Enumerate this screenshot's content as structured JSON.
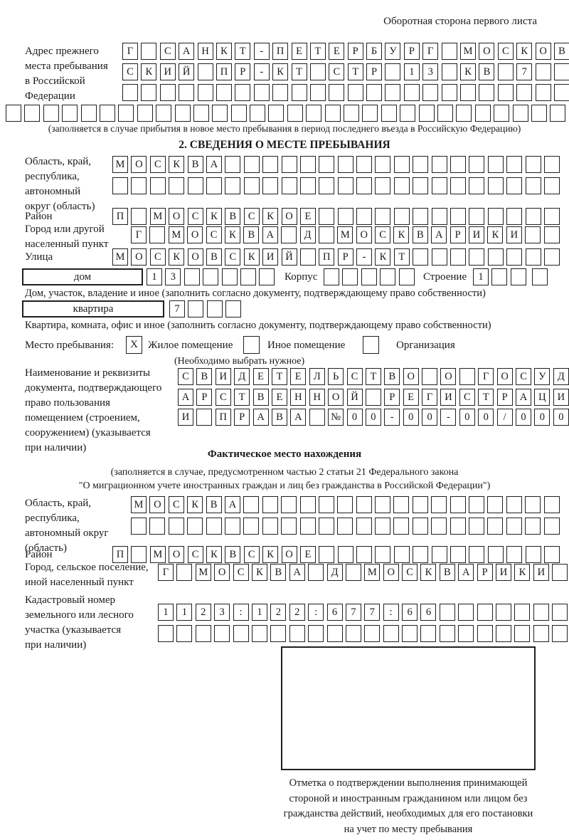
{
  "page": {
    "header_note": "Оборотная сторона первого листа"
  },
  "prev_address": {
    "label_lines": [
      "Адрес прежнего",
      "места пребывания",
      "в Российской",
      "Федерации"
    ],
    "row1": "Г САНКТ-ПЕТЕРБУРГ МОСКОВ",
    "row2": "СКИЙ ПР-КТ СТР 13 КВ 7  ",
    "row3": "                        ",
    "row4": "                              ",
    "caption": "(заполняется в случае прибытия в новое место пребывания в период последнего въезда в Российскую Федерацию)"
  },
  "section2": {
    "title": "2. СВЕДЕНИЯ О МЕСТЕ ПРЕБЫВАНИЯ",
    "region": {
      "label_lines": [
        "Область, край,",
        "республика,",
        "автономный",
        "округ (область)"
      ],
      "row1": "МОСКВА                  ",
      "row2": "                        "
    },
    "district": {
      "label": "Район",
      "row": "П МОСКВСКОЕ             "
    },
    "city": {
      "label_lines": [
        "Город или другой",
        "населенный пункт"
      ],
      "row": "Г МОСКВА Д МОСКВАРИКИ  "
    },
    "street": {
      "label": "Улица",
      "row": "МОСКОВСКИЙ ПР-КТ        "
    },
    "house": {
      "label": "дом",
      "cells": "13     ",
      "korpus_label": "Корпус",
      "korpus_cells": "     ",
      "stroenie_label": "Строение",
      "stroenie_cells": "1  ",
      "stroenie_extra": " ",
      "caption": "Дом, участок, владение и иное (заполнить согласно документу, подтверждающему право собственности)"
    },
    "apartment": {
      "label": "квартира",
      "cells": "7   ",
      "caption": "Квартира, комната, офис и иное (заполнить согласно документу, подтверждающему право собственности)"
    },
    "stay_type": {
      "label": "Место пребывания:",
      "option1": {
        "label": "Жилое помещение",
        "mark": "X"
      },
      "option2": {
        "label": "Иное помещение",
        "mark": ""
      },
      "option3": {
        "label": "Организация",
        "mark": ""
      },
      "hint": "(Необходимо выбрать нужное)"
    },
    "document": {
      "label_lines": [
        "Наименование и реквизиты",
        "документа, подтверждающего",
        "право пользования",
        "помещением (строением,",
        "сооружением) (указывается",
        "при наличии)"
      ],
      "row1": "СВИДЕТЕЛЬСТВО О ГОСУД",
      "row2": "АРСТВЕННОЙ РЕГИСТРАЦИ",
      "row3": "И ПРАВА №00-00-00/000"
    }
  },
  "actual_location": {
    "title": "Фактическое место нахождения",
    "caption_line1": "(заполняется в случае, предусмотренном частью 2 статьи 21 Федерального закона",
    "caption_line2": "\"О миграционном учете иностранных граждан и лиц без гражданства в Российской Федерации\")",
    "region": {
      "label_lines": [
        "Область, край,",
        "республика,",
        "автономный округ",
        "(область)"
      ],
      "row1": "МОСКВА                 ",
      "row2": "                       "
    },
    "district": {
      "label": "Район",
      "row": "П МОСКВСКОЕ             "
    },
    "city": {
      "label_lines": [
        "Город, сельское поселение,",
        "иной населенный пункт"
      ],
      "row": "Г МОСКВА Д МОСКВАРИКИ "
    },
    "cadastral": {
      "label_lines": [
        "Кадастровый номер",
        "земельного или лесного",
        "участка (указывается",
        "при наличии)"
      ],
      "row1": "1123:122:677:66       ",
      "row2": "                      "
    },
    "stamp_caption_lines": [
      "Отметка о подтверждении выполнения принимающей",
      "стороной и иностранным гражданином или лицом без",
      "гражданства действий, необходимых для его постановки",
      "на учет по месту пребывания"
    ]
  }
}
